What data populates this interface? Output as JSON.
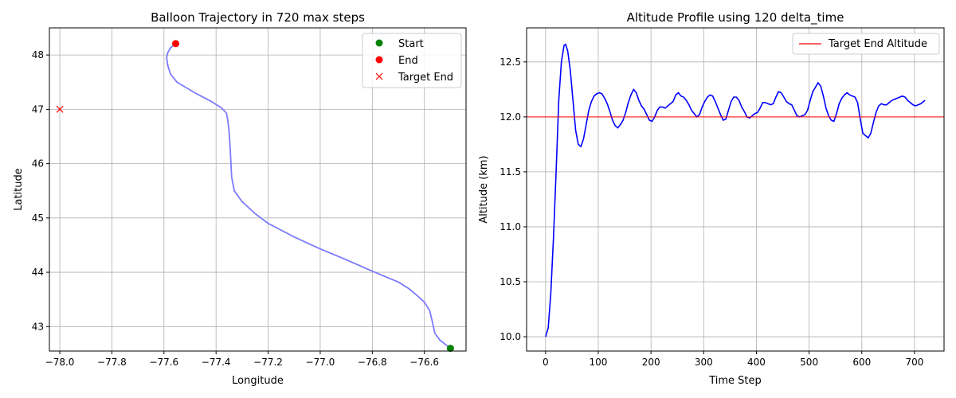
{
  "chart_data": [
    {
      "type": "line",
      "title": "Balloon Trajectory in 720 max steps",
      "xlabel": "Longitude",
      "ylabel": "Latitude",
      "xlim": [
        -78.04,
        -76.44
      ],
      "ylim": [
        42.55,
        48.5
      ],
      "xticks": [
        -78.0,
        -77.8,
        -77.6,
        -77.4,
        -77.2,
        -77.0,
        -76.8,
        -76.6
      ],
      "xtick_labels": [
        "−78.0",
        "−77.8",
        "−77.6",
        "−77.4",
        "−77.2",
        "−77.0",
        "−76.8",
        "−76.6"
      ],
      "yticks": [
        43,
        44,
        45,
        46,
        47,
        48
      ],
      "ytick_labels": [
        "43",
        "44",
        "45",
        "46",
        "47",
        "48"
      ],
      "grid": true,
      "legend_position": "top-right",
      "trajectory": {
        "color": "#7b7bff",
        "x": [
          -76.5,
          -76.54,
          -76.56,
          -76.57,
          -76.58,
          -76.6,
          -76.63,
          -76.66,
          -76.7,
          -76.75,
          -76.8,
          -76.9,
          -77.0,
          -77.1,
          -77.2,
          -77.25,
          -77.3,
          -77.33,
          -77.34,
          -77.345,
          -77.35,
          -77.355,
          -77.36,
          -77.38,
          -77.42,
          -77.48,
          -77.55,
          -77.575,
          -77.585,
          -77.59,
          -77.585,
          -77.575,
          -77.56
        ],
        "y": [
          42.6,
          42.75,
          42.88,
          43.1,
          43.3,
          43.45,
          43.58,
          43.7,
          43.82,
          43.92,
          44.02,
          44.23,
          44.43,
          44.65,
          44.9,
          45.08,
          45.3,
          45.5,
          45.75,
          46.2,
          46.6,
          46.8,
          46.93,
          47.03,
          47.15,
          47.3,
          47.5,
          47.65,
          47.8,
          47.95,
          48.05,
          48.13,
          48.2
        ]
      },
      "points": [
        {
          "name": "Start",
          "x": -76.5,
          "y": 42.6,
          "color": "#008000",
          "marker": "circle"
        },
        {
          "name": "End",
          "x": -77.555,
          "y": 48.21,
          "color": "#ff0000",
          "marker": "circle"
        },
        {
          "name": "Target End",
          "x": -78.0,
          "y": 47.0,
          "color": "#ff0000",
          "marker": "x"
        }
      ],
      "legend": [
        {
          "label": "Start",
          "color": "#008000",
          "marker": "circle"
        },
        {
          "label": "End",
          "color": "#ff0000",
          "marker": "circle"
        },
        {
          "label": "Target End",
          "color": "#ff0000",
          "marker": "x"
        }
      ]
    },
    {
      "type": "line",
      "title": "Altitude Profile using 120 delta_time",
      "xlabel": "Time Step",
      "ylabel": "Altitude (km)",
      "xlim": [
        -36,
        756
      ],
      "ylim": [
        9.87,
        12.81
      ],
      "xticks": [
        0,
        100,
        200,
        300,
        400,
        500,
        600,
        700
      ],
      "xtick_labels": [
        "0",
        "100",
        "200",
        "300",
        "400",
        "500",
        "600",
        "700"
      ],
      "yticks": [
        10.0,
        10.5,
        11.0,
        11.5,
        12.0,
        12.5
      ],
      "ytick_labels": [
        "10.0",
        "10.5",
        "11.0",
        "11.5",
        "12.0",
        "12.5"
      ],
      "grid": true,
      "legend_position": "top-right",
      "series": [
        {
          "color": "#0000ff",
          "x": [
            0,
            5,
            10,
            15,
            20,
            25,
            30,
            35,
            38,
            42,
            47,
            52,
            57,
            62,
            67,
            72,
            77,
            82,
            87,
            92,
            97,
            102,
            107,
            112,
            117,
            122,
            127,
            132,
            137,
            142,
            147,
            152,
            157,
            162,
            167,
            172,
            177,
            182,
            187,
            192,
            197,
            202,
            207,
            212,
            217,
            222,
            227,
            232,
            237,
            242,
            247,
            252,
            257,
            262,
            267,
            272,
            277,
            282,
            287,
            292,
            297,
            302,
            307,
            312,
            317,
            322,
            327,
            332,
            337,
            342,
            347,
            352,
            357,
            362,
            367,
            372,
            377,
            382,
            387,
            392,
            397,
            402,
            407,
            412,
            417,
            422,
            427,
            432,
            437,
            442,
            447,
            452,
            457,
            462,
            467,
            472,
            477,
            482,
            487,
            492,
            497,
            502,
            507,
            512,
            517,
            522,
            527,
            532,
            537,
            542,
            547,
            552,
            557,
            562,
            567,
            572,
            577,
            582,
            587,
            592,
            597,
            602,
            607,
            612,
            617,
            622,
            627,
            632,
            637,
            642,
            647,
            652,
            657,
            662,
            667,
            672,
            677,
            682,
            687,
            692,
            697,
            702,
            707,
            712,
            717,
            720
          ],
          "y": [
            10.0,
            10.08,
            10.4,
            10.9,
            11.5,
            12.15,
            12.5,
            12.65,
            12.66,
            12.6,
            12.42,
            12.15,
            11.88,
            11.75,
            11.73,
            11.8,
            11.93,
            12.06,
            12.14,
            12.19,
            12.21,
            12.22,
            12.21,
            12.17,
            12.12,
            12.05,
            11.97,
            11.92,
            11.9,
            11.93,
            11.97,
            12.04,
            12.13,
            12.2,
            12.25,
            12.22,
            12.15,
            12.1,
            12.07,
            12.02,
            11.97,
            11.96,
            12.0,
            12.06,
            12.09,
            12.09,
            12.08,
            12.1,
            12.12,
            12.14,
            12.2,
            12.22,
            12.19,
            12.18,
            12.15,
            12.11,
            12.06,
            12.03,
            12.0,
            12.02,
            12.09,
            12.14,
            12.18,
            12.2,
            12.19,
            12.14,
            12.08,
            12.02,
            11.97,
            11.98,
            12.06,
            12.14,
            12.18,
            12.18,
            12.15,
            12.09,
            12.05,
            12.0,
            11.99,
            12.01,
            12.03,
            12.04,
            12.08,
            12.13,
            12.13,
            12.12,
            12.11,
            12.12,
            12.18,
            12.23,
            12.22,
            12.18,
            12.14,
            12.12,
            12.11,
            12.06,
            12.01,
            12.0,
            12.01,
            12.02,
            12.06,
            12.15,
            12.23,
            12.27,
            12.31,
            12.28,
            12.19,
            12.08,
            12.01,
            11.97,
            11.96,
            12.03,
            12.12,
            12.17,
            12.2,
            12.22,
            12.2,
            12.19,
            12.18,
            12.13,
            11.98,
            11.85,
            11.83,
            11.81,
            11.85,
            11.95,
            12.04,
            12.1,
            12.12,
            12.11,
            12.11,
            12.13,
            12.15,
            12.16,
            12.17,
            12.18,
            12.19,
            12.18,
            12.15,
            12.13,
            12.11,
            12.1,
            12.11,
            12.12,
            12.14,
            12.15
          ]
        }
      ],
      "reference_line": {
        "label": "Target End Altitude",
        "y": 12.0,
        "color": "#ff0000"
      },
      "legend": [
        {
          "label": "Target End Altitude",
          "color": "#ff0000",
          "marker": "line"
        }
      ]
    }
  ]
}
